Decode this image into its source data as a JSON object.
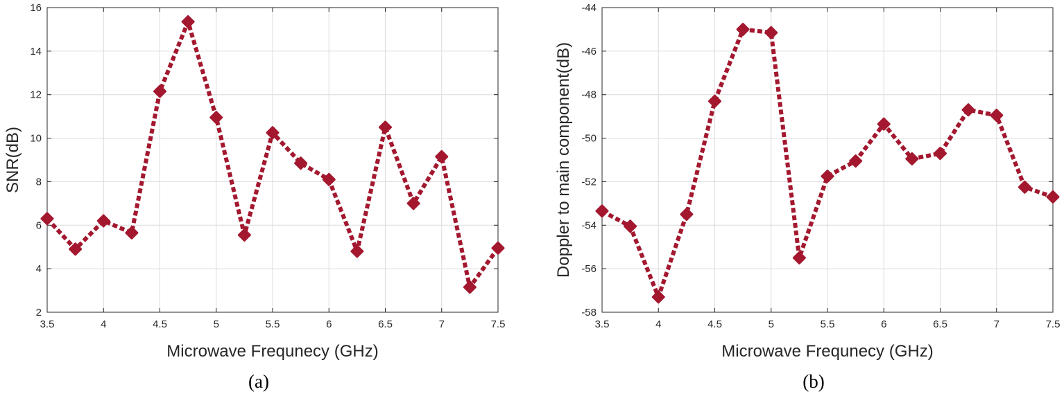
{
  "chart_data": [
    {
      "type": "line",
      "caption": "(a)",
      "xlabel": "Microwave Frequnecy (GHz)",
      "ylabel": "SNR(dB)",
      "xlim": [
        3.5,
        7.5
      ],
      "ylim": [
        2,
        16
      ],
      "xticks": [
        3.5,
        4,
        4.5,
        5,
        5.5,
        6,
        6.5,
        7,
        7.5
      ],
      "yticks": [
        2,
        4,
        6,
        8,
        10,
        12,
        14,
        16
      ],
      "grid": true,
      "series": [
        {
          "x": [
            3.5,
            3.75,
            4,
            4.25,
            4.5,
            4.75,
            5,
            5.25,
            5.5,
            5.75,
            6,
            6.25,
            6.5,
            6.75,
            7,
            7.25,
            7.5
          ],
          "y": [
            6.3,
            4.9,
            6.2,
            5.65,
            12.15,
            15.35,
            10.95,
            5.55,
            10.25,
            8.85,
            8.1,
            4.8,
            10.5,
            7.0,
            9.15,
            3.15,
            4.95
          ]
        }
      ]
    },
    {
      "type": "line",
      "caption": "(b)",
      "xlabel": "Microwave Frequnecy (GHz)",
      "ylabel": "Doppler to main component(dB)",
      "xlim": [
        3.5,
        7.5
      ],
      "ylim": [
        -58,
        -44
      ],
      "xticks": [
        3.5,
        4,
        4.5,
        5,
        5.5,
        6,
        6.5,
        7,
        7.5
      ],
      "yticks": [
        -58,
        -56,
        -54,
        -52,
        -50,
        -48,
        -46,
        -44
      ],
      "grid": true,
      "series": [
        {
          "x": [
            3.5,
            3.75,
            4,
            4.25,
            4.5,
            4.75,
            5,
            5.25,
            5.5,
            5.75,
            6,
            6.25,
            6.5,
            6.75,
            7,
            7.25,
            7.5
          ],
          "y": [
            -53.35,
            -54.05,
            -57.3,
            -53.5,
            -48.3,
            -45.0,
            -45.15,
            -55.5,
            -51.75,
            -51.05,
            -49.35,
            -50.95,
            -50.7,
            -48.7,
            -48.95,
            -52.25,
            -52.7
          ]
        }
      ]
    }
  ],
  "style": {
    "line_color": "#a3182f",
    "grid_color": "#dcdcdc",
    "axis_color": "#262626",
    "line_style": "dotted",
    "marker": "diamond"
  }
}
